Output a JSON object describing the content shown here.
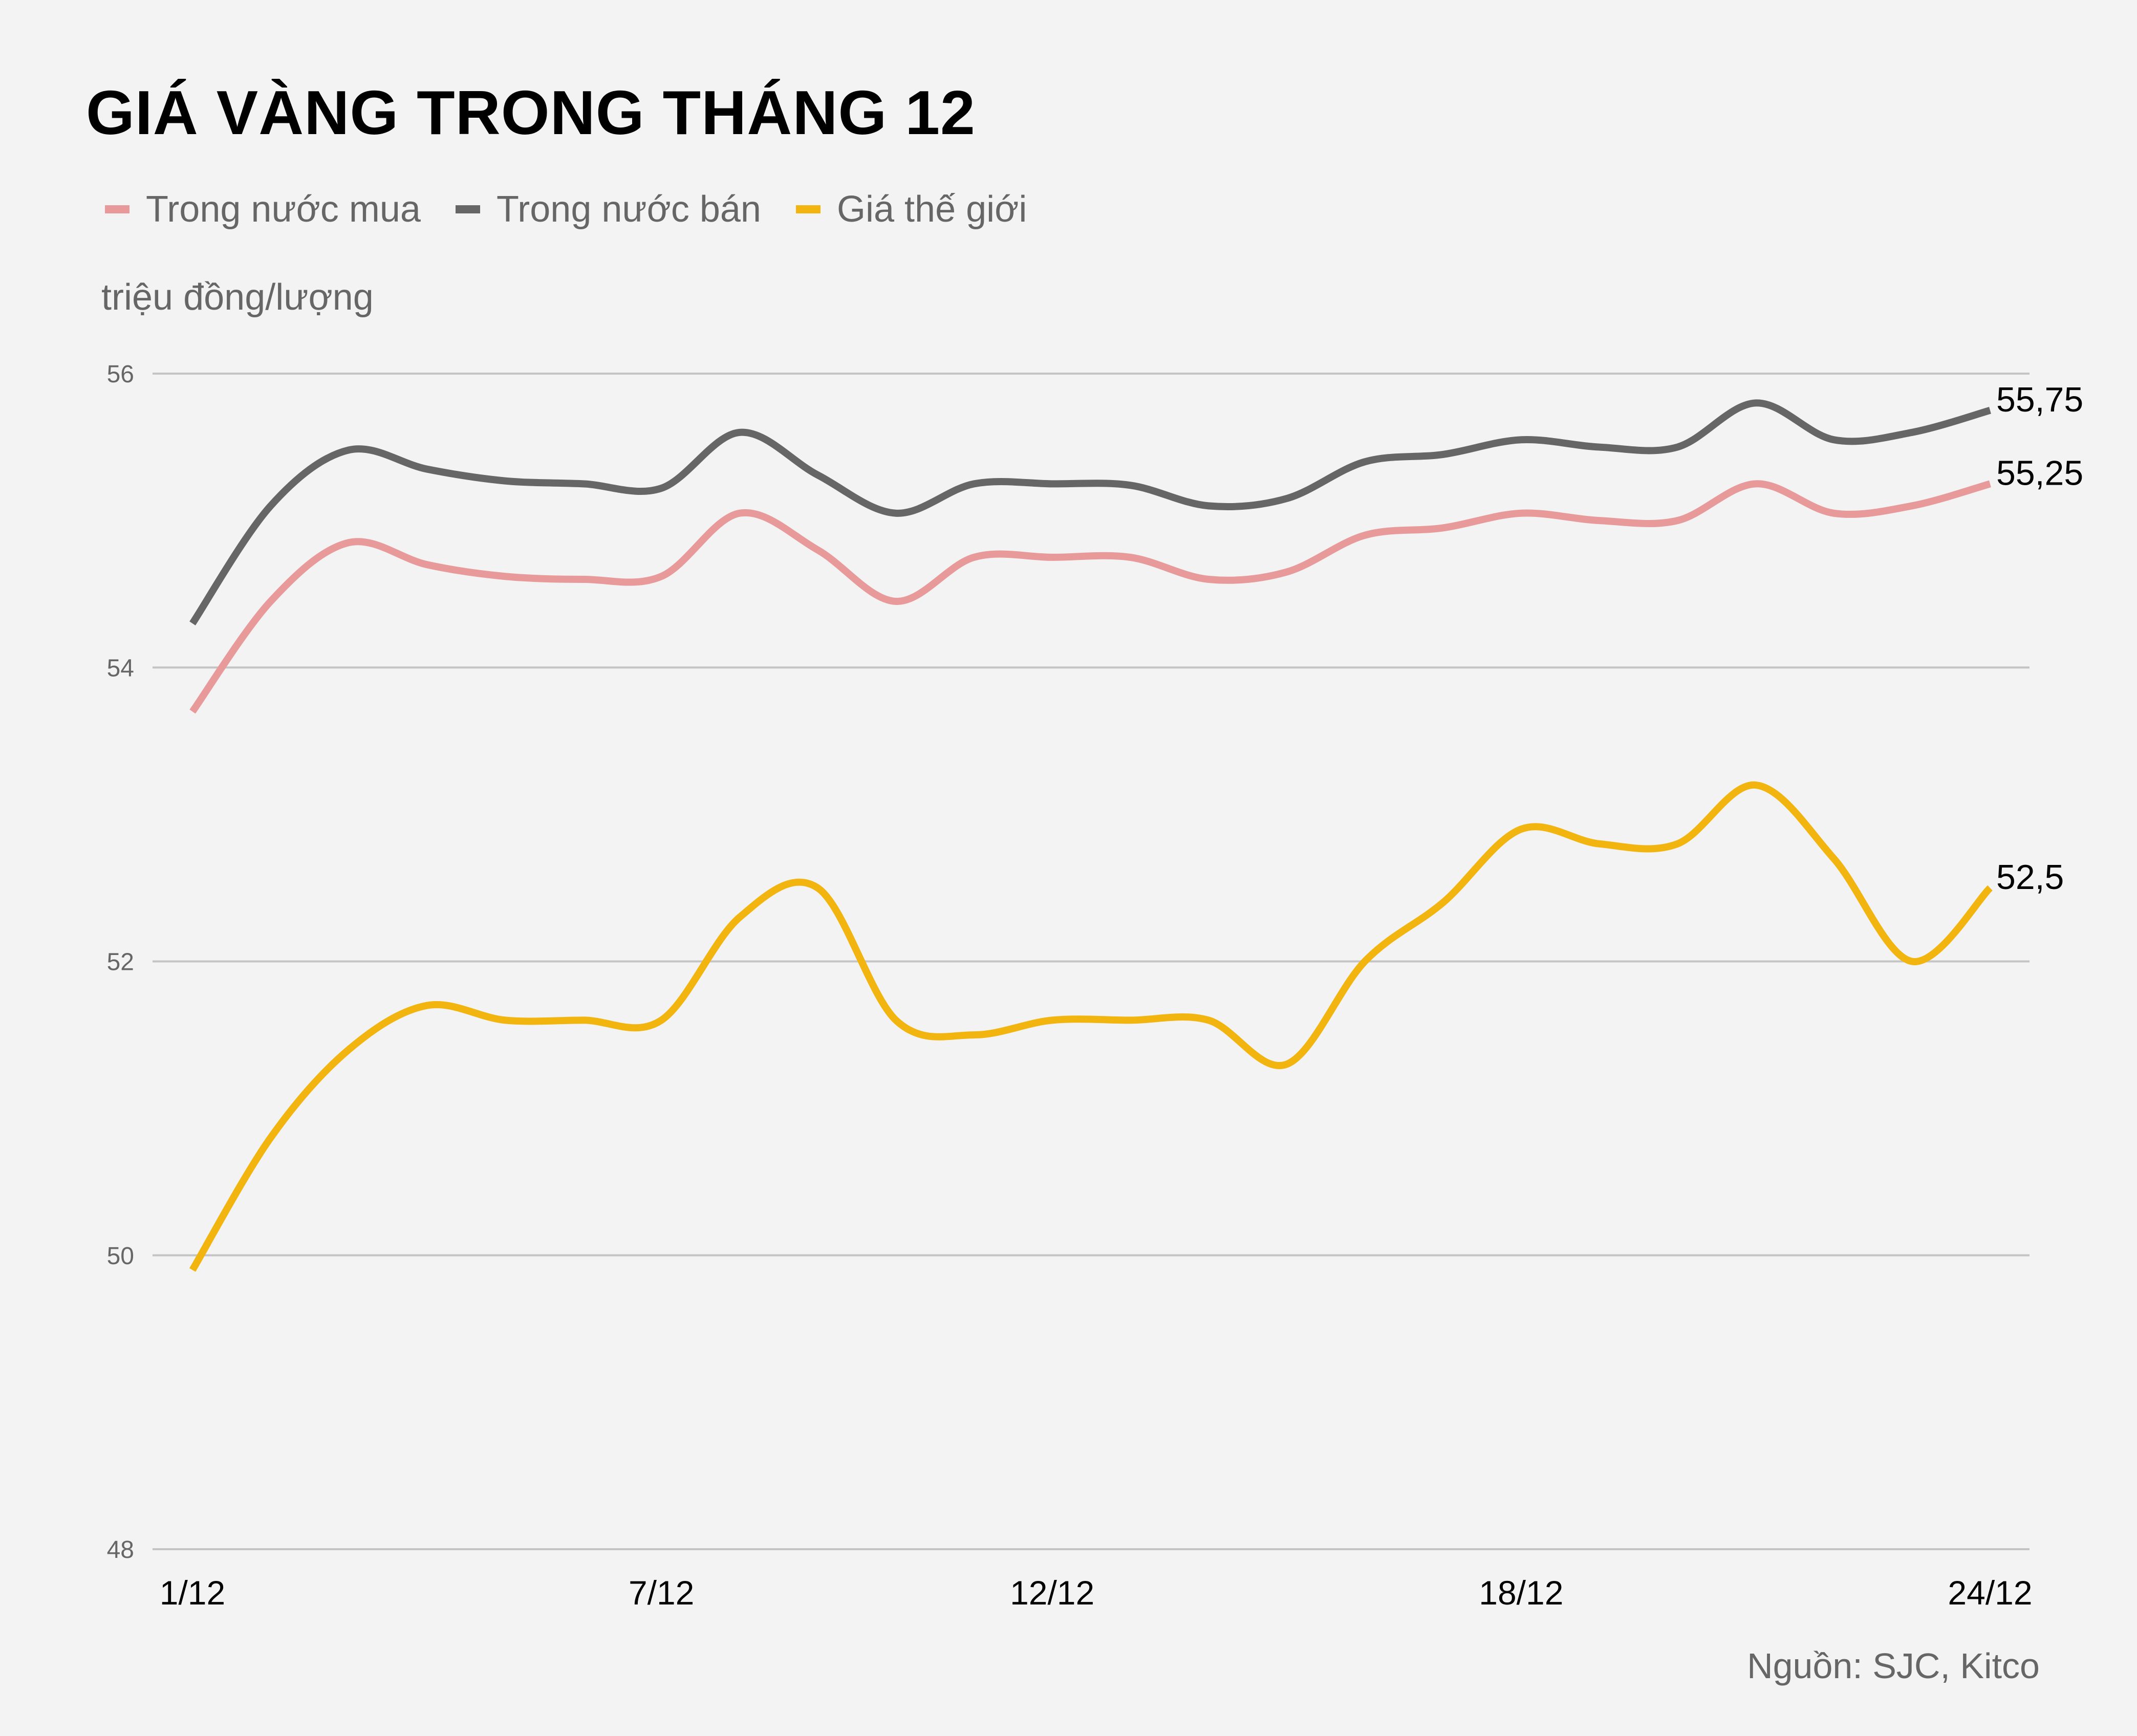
{
  "title": "GIÁ VÀNG TRONG THÁNG 12",
  "unit_label": "triệu đồng/lượng",
  "source": "Nguồn: SJC, Kitco",
  "legend": [
    {
      "label": "Trong nước mua",
      "color": "#e89a9a"
    },
    {
      "label": "Trong nước bán",
      "color": "#666666"
    },
    {
      "label": "Giá thế giới",
      "color": "#f2b50f"
    }
  ],
  "chart_data": {
    "type": "line",
    "title": "GIÁ VÀNG TRONG THÁNG 12",
    "xlabel": "",
    "ylabel": "triệu đồng/lượng",
    "ylim": [
      48,
      56
    ],
    "yticks": [
      48,
      50,
      52,
      54,
      56
    ],
    "grid": true,
    "legend_position": "top",
    "x": [
      "1/12",
      "2/12",
      "3/12",
      "4/12",
      "5/12",
      "6/12",
      "7/12",
      "8/12",
      "9/12",
      "10/12",
      "11/12",
      "12/12",
      "13/12",
      "14/12",
      "15/12",
      "16/12",
      "17/12",
      "18/12",
      "19/12",
      "20/12",
      "21/12",
      "22/12",
      "23/12",
      "24/12"
    ],
    "xtick_labels": [
      "1/12",
      "7/12",
      "12/12",
      "18/12",
      "24/12"
    ],
    "series": [
      {
        "name": "Trong nước mua",
        "color": "#e89a9a",
        "values": [
          53.7,
          54.45,
          54.85,
          54.7,
          54.62,
          54.6,
          54.62,
          55.05,
          54.8,
          54.45,
          54.75,
          54.75,
          54.75,
          54.6,
          54.65,
          54.9,
          54.95,
          55.05,
          55.0,
          55.0,
          55.25,
          55.05,
          55.1,
          55.25
        ],
        "end_label": "55,25"
      },
      {
        "name": "Trong nước bán",
        "color": "#666666",
        "values": [
          54.3,
          55.1,
          55.48,
          55.35,
          55.27,
          55.25,
          55.22,
          55.6,
          55.31,
          55.05,
          55.25,
          55.25,
          55.24,
          55.1,
          55.15,
          55.4,
          55.45,
          55.55,
          55.5,
          55.5,
          55.8,
          55.55,
          55.6,
          55.75
        ],
        "end_label": "55,75"
      },
      {
        "name": "Giá thế giới",
        "color": "#f2b50f",
        "values": [
          49.9,
          50.8,
          51.4,
          51.7,
          51.6,
          51.6,
          51.6,
          52.3,
          52.5,
          51.6,
          51.5,
          51.6,
          51.6,
          51.6,
          51.3,
          52.0,
          52.4,
          52.9,
          52.8,
          52.8,
          53.2,
          52.7,
          52.0,
          52.5
        ],
        "end_label": "52,5"
      }
    ]
  }
}
